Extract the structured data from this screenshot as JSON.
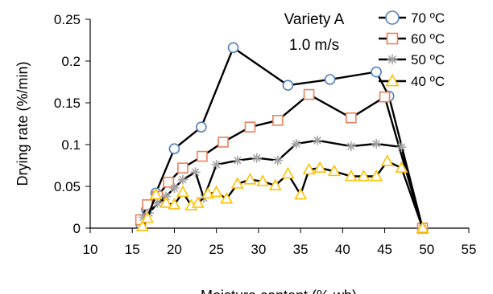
{
  "chart_data": {
    "type": "line",
    "xlabel": "Moisture content (% wb)",
    "ylabel": "Drying rate (%/min)",
    "xlim": [
      10,
      55
    ],
    "ylim": [
      0,
      0.25
    ],
    "xticks": [
      "10",
      "15",
      "20",
      "25",
      "30",
      "35",
      "40",
      "45",
      "50",
      "55"
    ],
    "yticks": [
      "0",
      "0.05",
      "0.1",
      "0.15",
      "0.2",
      "0.25"
    ],
    "grid": false,
    "legend_position": "top-right",
    "annotations": [
      "Variety A",
      "1.0 m/s"
    ],
    "series": [
      {
        "name": "70 ºC",
        "marker": "circle",
        "color": "#4f81bd",
        "x": [
          16.0,
          16.7,
          17.8,
          20.0,
          23.2,
          27.0,
          33.5,
          38.5,
          44.0,
          45.5,
          49.5
        ],
        "y": [
          0.005,
          0.022,
          0.042,
          0.095,
          0.121,
          0.216,
          0.171,
          0.178,
          0.187,
          0.158,
          0.0
        ]
      },
      {
        "name": "60 ºC",
        "marker": "square",
        "color": "#e8825b",
        "x": [
          16.0,
          16.8,
          18.0,
          19.3,
          21.0,
          23.3,
          25.8,
          29.0,
          32.3,
          36.0,
          41.0,
          45.0,
          49.5
        ],
        "y": [
          0.01,
          0.028,
          0.038,
          0.055,
          0.072,
          0.086,
          0.103,
          0.121,
          0.129,
          0.16,
          0.132,
          0.157,
          0.0
        ]
      },
      {
        "name": "50 ºC",
        "marker": "asterisk",
        "color": "#a5a5a5",
        "x": [
          16.3,
          17.0,
          18.0,
          19.0,
          20.0,
          21.0,
          22.5,
          23.5,
          25.0,
          27.5,
          29.8,
          32.3,
          34.5,
          37.0,
          41.0,
          44.0,
          47.0,
          49.5
        ],
        "y": [
          0.013,
          0.018,
          0.03,
          0.038,
          0.048,
          0.058,
          0.067,
          0.036,
          0.076,
          0.081,
          0.084,
          0.081,
          0.101,
          0.105,
          0.098,
          0.101,
          0.097,
          0.0
        ]
      },
      {
        "name": "40 ºC",
        "marker": "triangle",
        "color": "#ffc000",
        "x": [
          16.2,
          16.8,
          17.8,
          19.0,
          20.0,
          21.0,
          22.0,
          22.8,
          24.0,
          25.0,
          26.2,
          27.5,
          29.0,
          30.5,
          32.0,
          33.5,
          35.0,
          36.0,
          37.3,
          39.0,
          41.0,
          42.5,
          44.0,
          45.3,
          47.0,
          49.5
        ],
        "y": [
          0.002,
          0.012,
          0.04,
          0.03,
          0.028,
          0.043,
          0.027,
          0.03,
          0.041,
          0.043,
          0.035,
          0.053,
          0.058,
          0.056,
          0.051,
          0.065,
          0.04,
          0.07,
          0.072,
          0.068,
          0.062,
          0.062,
          0.062,
          0.08,
          0.072,
          0.0
        ]
      }
    ]
  }
}
